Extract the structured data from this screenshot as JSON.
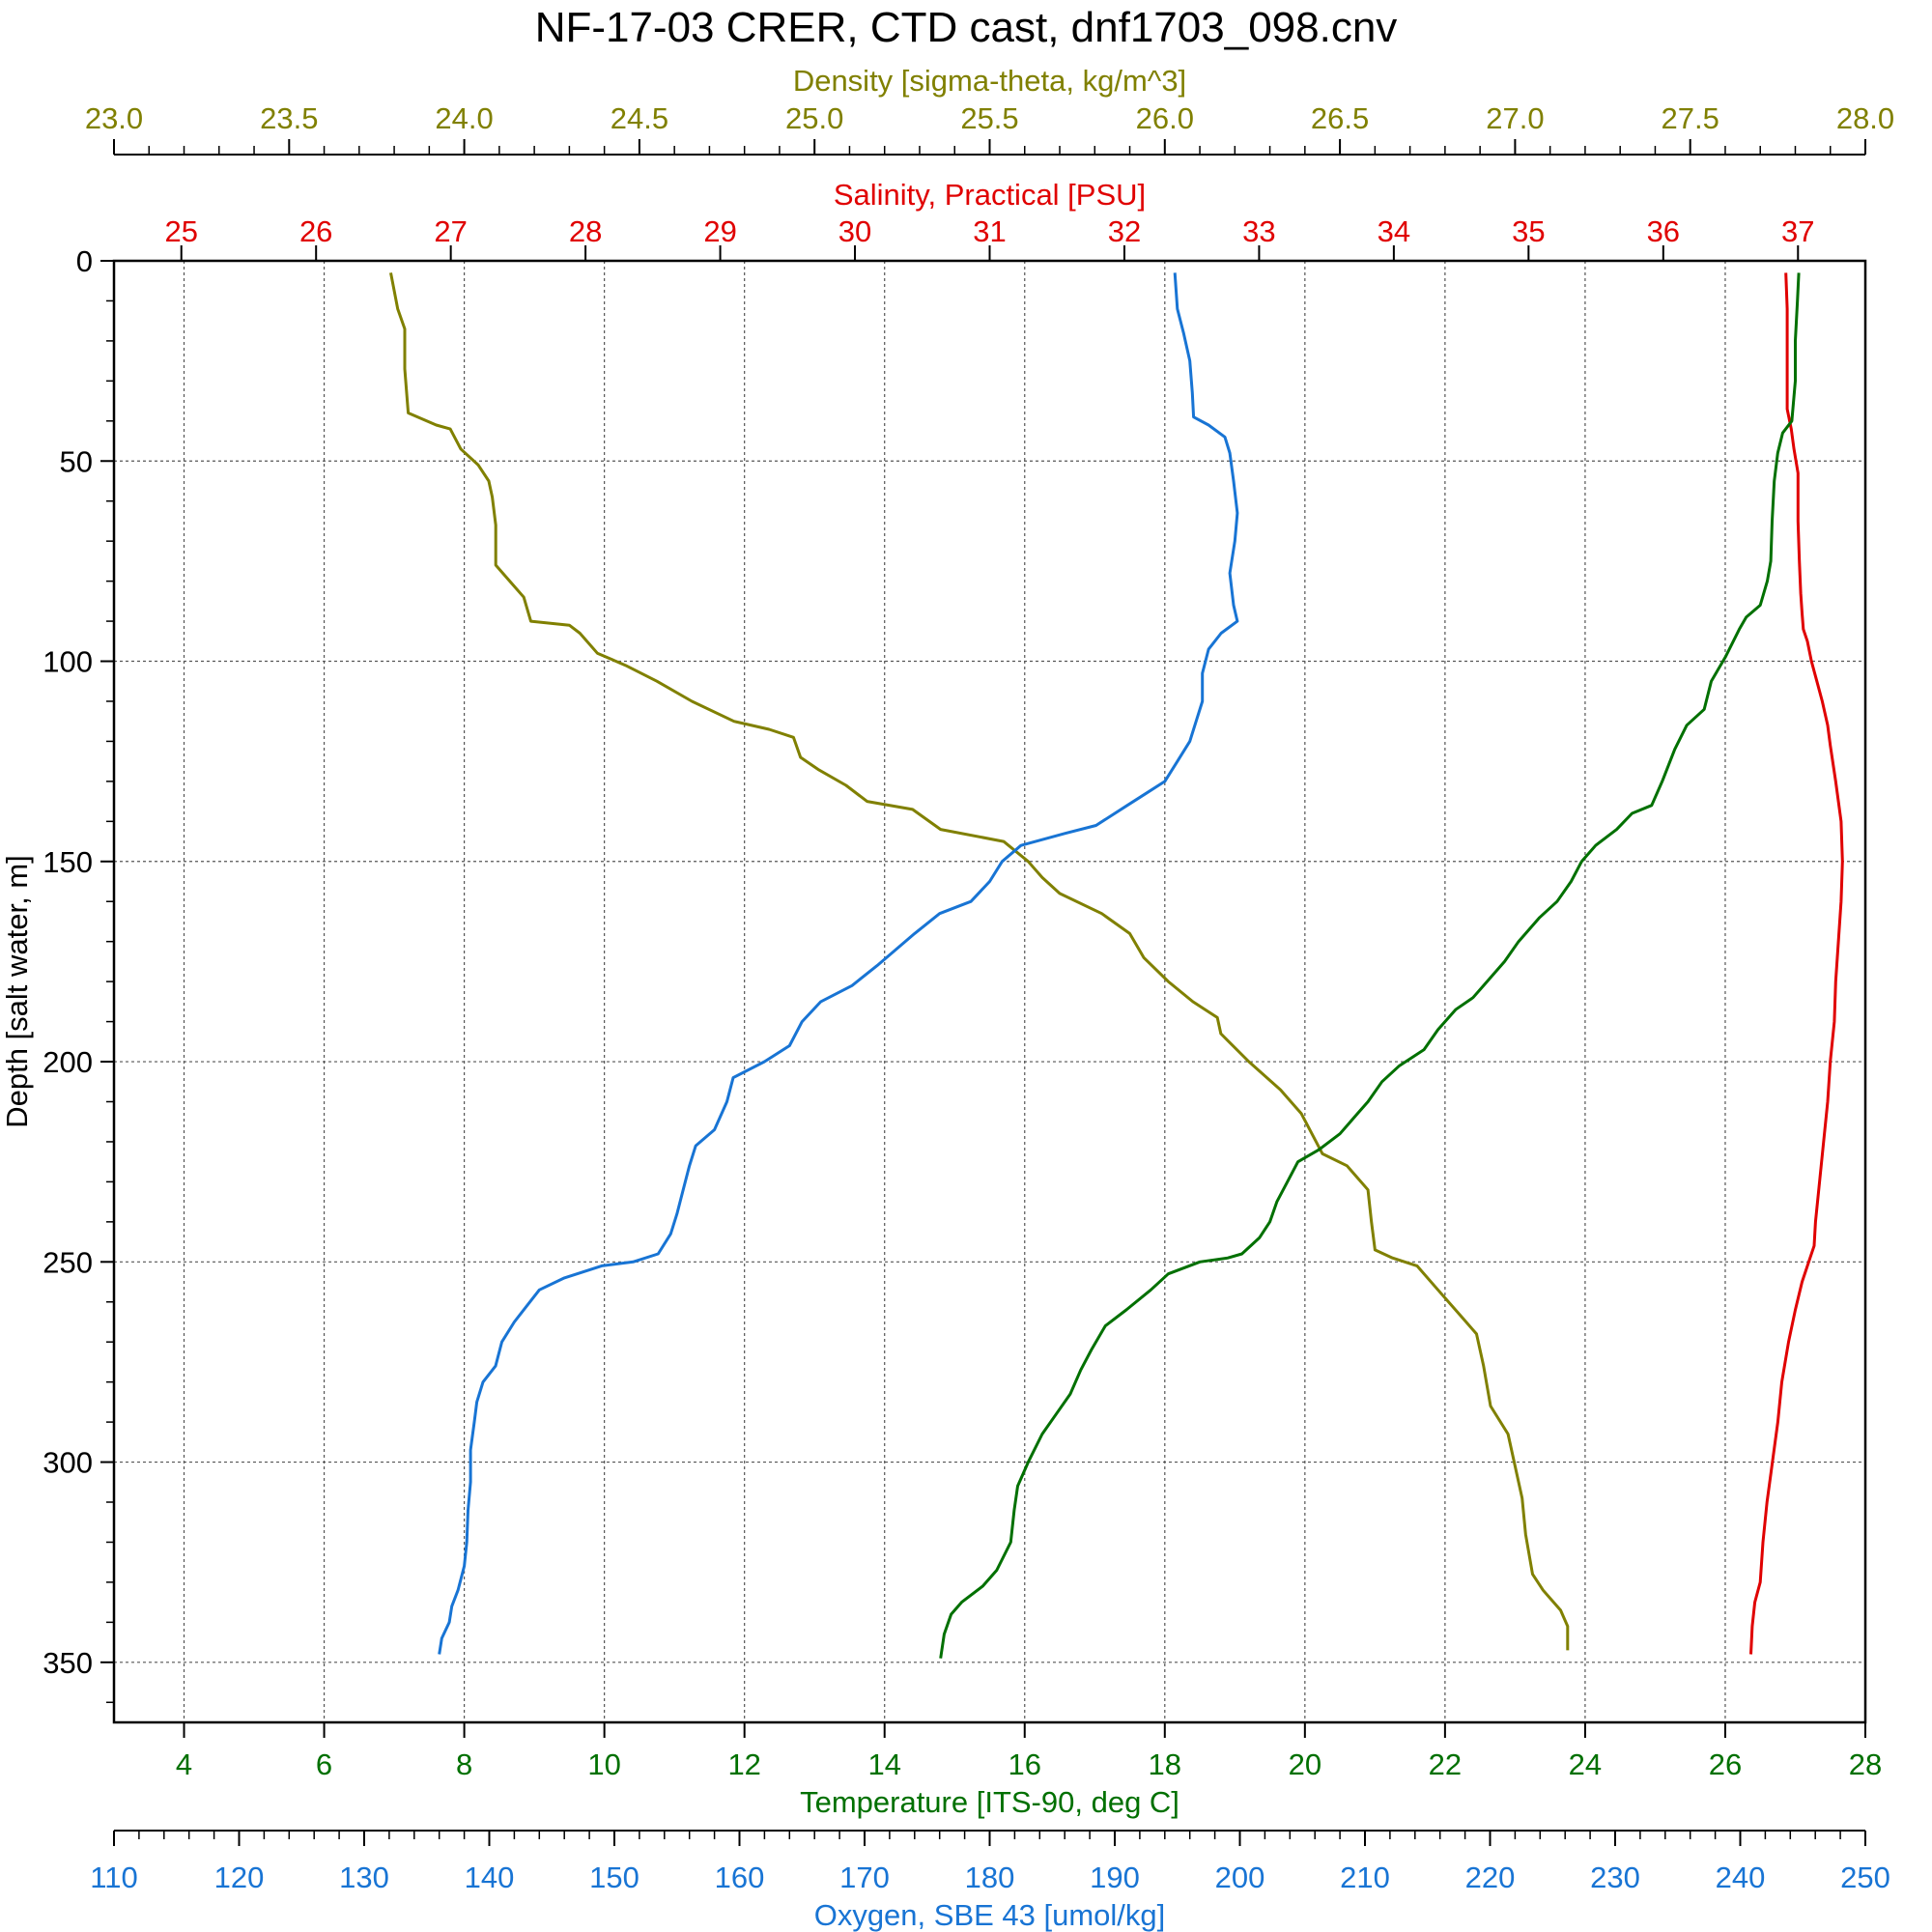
{
  "colors": {
    "density": "#808000",
    "salinity": "#e00000",
    "temperature": "#007000",
    "oxygen": "#1874d4",
    "text": "#000000",
    "grid": "#555555"
  },
  "chart_data": {
    "type": "line",
    "title": "NF-17-03 CRER, CTD cast, dnf1703_098.cnv",
    "grid": true,
    "y_axis": {
      "label": "Depth [salt water, m]",
      "range": [
        0,
        365
      ],
      "inverted": true,
      "ticks": [
        0,
        50,
        100,
        150,
        200,
        250,
        300,
        350
      ],
      "tick_labels": [
        "0",
        "50",
        "100",
        "150",
        "200",
        "250",
        "300",
        "350"
      ]
    },
    "x_axes": [
      {
        "id": "density",
        "label": "Density [sigma-theta, kg/m^3]",
        "placement": "top-outer",
        "range": [
          23.0,
          28.0
        ],
        "ticks": [
          23.0,
          23.5,
          24.0,
          24.5,
          25.0,
          25.5,
          26.0,
          26.5,
          27.0,
          27.5,
          28.0
        ],
        "tick_labels": [
          "23.0",
          "23.5",
          "24.0",
          "24.5",
          "25.0",
          "25.5",
          "26.0",
          "26.5",
          "27.0",
          "27.5",
          "28.0"
        ]
      },
      {
        "id": "salinity",
        "label": "Salinity, Practical [PSU]",
        "placement": "top-inner",
        "range": [
          24.5,
          37.5
        ],
        "ticks": [
          25,
          26,
          27,
          28,
          29,
          30,
          31,
          32,
          33,
          34,
          35,
          36,
          37
        ],
        "tick_labels": [
          "25",
          "26",
          "27",
          "28",
          "29",
          "30",
          "31",
          "32",
          "33",
          "34",
          "35",
          "36",
          "37"
        ]
      },
      {
        "id": "temperature",
        "label": "Temperature [ITS-90, deg C]",
        "placement": "bottom-inner",
        "range": [
          3,
          28
        ],
        "ticks": [
          4,
          6,
          8,
          10,
          12,
          14,
          16,
          18,
          20,
          22,
          24,
          26,
          28
        ],
        "tick_labels": [
          "4",
          "6",
          "8",
          "10",
          "12",
          "14",
          "16",
          "18",
          "20",
          "22",
          "24",
          "26",
          "28"
        ]
      },
      {
        "id": "oxygen",
        "label": "Oxygen, SBE 43 [umol/kg]",
        "placement": "bottom-outer",
        "range": [
          110,
          250
        ],
        "ticks": [
          110,
          120,
          130,
          140,
          150,
          160,
          170,
          180,
          190,
          200,
          210,
          220,
          230,
          240,
          250
        ],
        "tick_labels": [
          "110",
          "120",
          "130",
          "140",
          "150",
          "160",
          "170",
          "180",
          "190",
          "200",
          "210",
          "220",
          "230",
          "240",
          "250"
        ]
      }
    ],
    "series": [
      {
        "axis": "density",
        "color": "#808000",
        "points": [
          [
            23.79,
            3
          ],
          [
            23.81,
            12
          ],
          [
            23.83,
            17
          ],
          [
            23.83,
            27
          ],
          [
            23.84,
            38
          ],
          [
            23.92,
            41
          ],
          [
            23.96,
            42
          ],
          [
            23.99,
            47
          ],
          [
            24.04,
            51
          ],
          [
            24.07,
            55
          ],
          [
            24.08,
            59
          ],
          [
            24.09,
            66
          ],
          [
            24.09,
            76
          ],
          [
            24.13,
            80
          ],
          [
            24.17,
            84
          ],
          [
            24.19,
            90
          ],
          [
            24.3,
            91
          ],
          [
            24.33,
            93
          ],
          [
            24.38,
            98
          ],
          [
            24.46,
            101
          ],
          [
            24.55,
            105
          ],
          [
            24.65,
            110
          ],
          [
            24.77,
            115
          ],
          [
            24.87,
            117
          ],
          [
            24.94,
            119
          ],
          [
            24.96,
            124
          ],
          [
            25.01,
            127
          ],
          [
            25.09,
            131
          ],
          [
            25.15,
            135
          ],
          [
            25.28,
            137
          ],
          [
            25.36,
            142
          ],
          [
            25.54,
            145
          ],
          [
            25.61,
            150
          ],
          [
            25.65,
            154
          ],
          [
            25.7,
            158
          ],
          [
            25.82,
            163
          ],
          [
            25.9,
            168
          ],
          [
            25.94,
            174
          ],
          [
            26.01,
            180
          ],
          [
            26.08,
            185
          ],
          [
            26.15,
            189
          ],
          [
            26.16,
            193
          ],
          [
            26.24,
            200
          ],
          [
            26.33,
            207
          ],
          [
            26.39,
            213
          ],
          [
            26.42,
            218
          ],
          [
            26.45,
            223
          ],
          [
            26.52,
            226
          ],
          [
            26.58,
            232
          ],
          [
            26.59,
            240
          ],
          [
            26.6,
            247
          ],
          [
            26.65,
            249
          ],
          [
            26.72,
            251
          ],
          [
            26.78,
            257
          ],
          [
            26.85,
            264
          ],
          [
            26.89,
            268
          ],
          [
            26.91,
            276
          ],
          [
            26.93,
            286
          ],
          [
            26.98,
            293
          ],
          [
            27.0,
            301
          ],
          [
            27.02,
            309
          ],
          [
            27.03,
            318
          ],
          [
            27.05,
            328
          ],
          [
            27.08,
            332
          ],
          [
            27.13,
            337
          ],
          [
            27.15,
            341
          ],
          [
            27.15,
            347
          ]
        ]
      },
      {
        "axis": "salinity",
        "color": "#e00000",
        "points": [
          [
            36.91,
            3
          ],
          [
            36.92,
            12
          ],
          [
            36.92,
            24
          ],
          [
            36.92,
            37
          ],
          [
            36.95,
            42
          ],
          [
            36.97,
            47
          ],
          [
            37.0,
            53
          ],
          [
            37.0,
            65
          ],
          [
            37.01,
            75
          ],
          [
            37.02,
            83
          ],
          [
            37.03,
            88
          ],
          [
            37.04,
            92
          ],
          [
            37.07,
            95
          ],
          [
            37.1,
            100
          ],
          [
            37.14,
            105
          ],
          [
            37.18,
            110
          ],
          [
            37.22,
            116
          ],
          [
            37.24,
            121
          ],
          [
            37.28,
            130
          ],
          [
            37.32,
            140
          ],
          [
            37.33,
            150
          ],
          [
            37.32,
            160
          ],
          [
            37.3,
            170
          ],
          [
            37.28,
            180
          ],
          [
            37.27,
            190
          ],
          [
            37.24,
            200
          ],
          [
            37.22,
            210
          ],
          [
            37.19,
            220
          ],
          [
            37.16,
            230
          ],
          [
            37.13,
            240
          ],
          [
            37.12,
            246
          ],
          [
            37.08,
            250
          ],
          [
            37.03,
            255
          ],
          [
            36.98,
            262
          ],
          [
            36.93,
            270
          ],
          [
            36.88,
            280
          ],
          [
            36.85,
            290
          ],
          [
            36.81,
            300
          ],
          [
            36.77,
            310
          ],
          [
            36.74,
            320
          ],
          [
            36.72,
            330
          ],
          [
            36.68,
            335
          ],
          [
            36.66,
            341
          ],
          [
            36.65,
            348
          ]
        ]
      },
      {
        "axis": "temperature",
        "color": "#007000",
        "points": [
          [
            27.05,
            3
          ],
          [
            27.03,
            10
          ],
          [
            27.0,
            20
          ],
          [
            27.0,
            30
          ],
          [
            26.95,
            40
          ],
          [
            26.82,
            43
          ],
          [
            26.75,
            48
          ],
          [
            26.7,
            55
          ],
          [
            26.67,
            65
          ],
          [
            26.65,
            75
          ],
          [
            26.6,
            80
          ],
          [
            26.5,
            86
          ],
          [
            26.3,
            89
          ],
          [
            26.2,
            92
          ],
          [
            26.0,
            99
          ],
          [
            25.8,
            105
          ],
          [
            25.7,
            112
          ],
          [
            25.45,
            116
          ],
          [
            25.28,
            122
          ],
          [
            25.1,
            130
          ],
          [
            24.95,
            136
          ],
          [
            24.67,
            138
          ],
          [
            24.45,
            142
          ],
          [
            24.15,
            146
          ],
          [
            23.95,
            150
          ],
          [
            23.8,
            155
          ],
          [
            23.6,
            160
          ],
          [
            23.35,
            164
          ],
          [
            23.05,
            170
          ],
          [
            22.85,
            175
          ],
          [
            22.6,
            180
          ],
          [
            22.4,
            184
          ],
          [
            22.15,
            187
          ],
          [
            21.9,
            192
          ],
          [
            21.7,
            197
          ],
          [
            21.35,
            201
          ],
          [
            21.1,
            205
          ],
          [
            20.9,
            210
          ],
          [
            20.75,
            213
          ],
          [
            20.5,
            218
          ],
          [
            20.2,
            222
          ],
          [
            19.9,
            225
          ],
          [
            19.75,
            230
          ],
          [
            19.6,
            235
          ],
          [
            19.5,
            240
          ],
          [
            19.35,
            244
          ],
          [
            19.1,
            248
          ],
          [
            18.9,
            249
          ],
          [
            18.5,
            250
          ],
          [
            18.05,
            253
          ],
          [
            17.8,
            257
          ],
          [
            17.45,
            262
          ],
          [
            17.15,
            266
          ],
          [
            16.95,
            272
          ],
          [
            16.8,
            277
          ],
          [
            16.65,
            283
          ],
          [
            16.45,
            288
          ],
          [
            16.25,
            293
          ],
          [
            16.05,
            300
          ],
          [
            15.9,
            306
          ],
          [
            15.85,
            312
          ],
          [
            15.8,
            320
          ],
          [
            15.6,
            327
          ],
          [
            15.4,
            331
          ],
          [
            15.1,
            335
          ],
          [
            14.95,
            338
          ],
          [
            14.85,
            343
          ],
          [
            14.8,
            349
          ]
        ]
      },
      {
        "axis": "oxygen",
        "color": "#1874d4",
        "points": [
          [
            194.8,
            3
          ],
          [
            195.0,
            12
          ],
          [
            195.5,
            18
          ],
          [
            196.0,
            25
          ],
          [
            196.2,
            33
          ],
          [
            196.3,
            39
          ],
          [
            197.5,
            41
          ],
          [
            198.8,
            44
          ],
          [
            199.2,
            48
          ],
          [
            199.5,
            55
          ],
          [
            199.8,
            63
          ],
          [
            199.6,
            70
          ],
          [
            199.2,
            78
          ],
          [
            199.5,
            86
          ],
          [
            199.8,
            90
          ],
          [
            198.5,
            93
          ],
          [
            197.5,
            97
          ],
          [
            197.0,
            103
          ],
          [
            197.0,
            110
          ],
          [
            196.5,
            115
          ],
          [
            196.0,
            120
          ],
          [
            195.0,
            125
          ],
          [
            194.0,
            130
          ],
          [
            192.5,
            133
          ],
          [
            191.0,
            136
          ],
          [
            188.5,
            141
          ],
          [
            186.0,
            143
          ],
          [
            182.5,
            146
          ],
          [
            181.0,
            150
          ],
          [
            180.0,
            155
          ],
          [
            178.5,
            160
          ],
          [
            176.0,
            163
          ],
          [
            174.0,
            168
          ],
          [
            172.5,
            172
          ],
          [
            171.0,
            176
          ],
          [
            169.0,
            181
          ],
          [
            166.5,
            185
          ],
          [
            165.0,
            190
          ],
          [
            164.0,
            196
          ],
          [
            162.0,
            200
          ],
          [
            159.5,
            204
          ],
          [
            159.0,
            210
          ],
          [
            158.0,
            217
          ],
          [
            156.5,
            221
          ],
          [
            156.0,
            226
          ],
          [
            155.5,
            232
          ],
          [
            155.0,
            238
          ],
          [
            154.5,
            243
          ],
          [
            153.5,
            248
          ],
          [
            151.5,
            250
          ],
          [
            149.0,
            251
          ],
          [
            146.0,
            254
          ],
          [
            144.0,
            257
          ],
          [
            143.0,
            261
          ],
          [
            142.0,
            265
          ],
          [
            141.0,
            270
          ],
          [
            140.5,
            276
          ],
          [
            139.5,
            280
          ],
          [
            139.0,
            285
          ],
          [
            138.8,
            290
          ],
          [
            138.5,
            297
          ],
          [
            138.5,
            305
          ],
          [
            138.3,
            312
          ],
          [
            138.2,
            320
          ],
          [
            138.0,
            326
          ],
          [
            137.5,
            332
          ],
          [
            137.0,
            336
          ],
          [
            136.8,
            340
          ],
          [
            136.2,
            344
          ],
          [
            136.0,
            348
          ]
        ]
      }
    ]
  }
}
